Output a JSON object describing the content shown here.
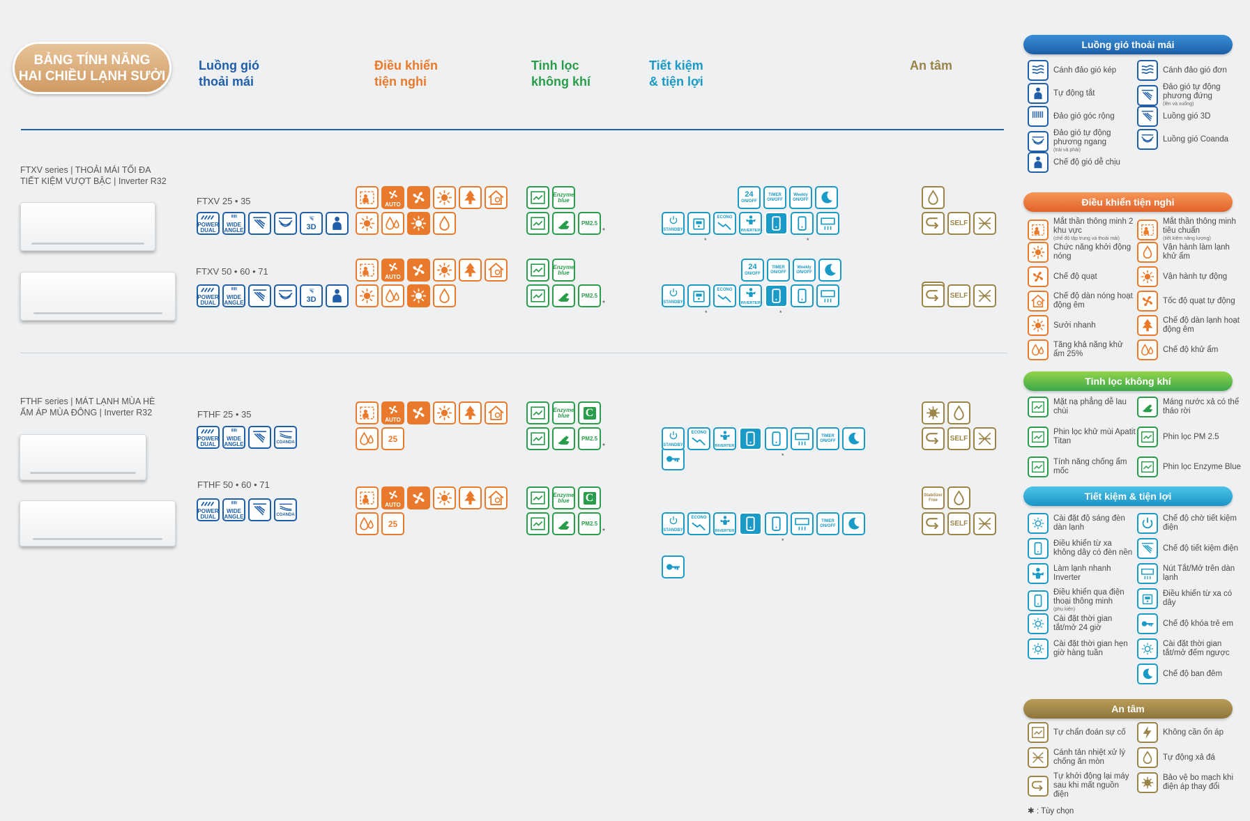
{
  "title": {
    "line1": "BẢNG TÍNH NĂNG",
    "line2": "HAI CHIỀU LẠNH SƯỞI"
  },
  "columns": [
    {
      "line1": "Luồng gió",
      "line2": "thoải mái",
      "color": "#1f5fa9"
    },
    {
      "line1": "Điều khiển",
      "line2": "tiện nghi",
      "color": "#ea7a2b"
    },
    {
      "line1": "Tinh lọc",
      "line2": "không khí",
      "color": "#2a9d4b"
    },
    {
      "line1": "Tiết kiệm",
      "line2": "& tiện lợi",
      "color": "#1a9ac6"
    },
    {
      "line1": "An tâm",
      "line2": "",
      "color": "#9b8447"
    }
  ],
  "series": [
    {
      "line1": "FTXV series | THOẢI MÁI TỐI ĐA",
      "line2": "TIẾT KIỆM VƯỢT BẬC | Inverter R32",
      "models": [
        "FTXV 25 • 35",
        "FTXV 50 • 60 • 71"
      ]
    },
    {
      "line1": "FTHF series | MÁT LẠNH MÙA HÈ",
      "line2": "ẤM ÁP MÙA ĐÔNG | Inverter R32",
      "models": [
        "FTHF 25 • 35",
        "FTHF 50 • 60 • 71"
      ]
    }
  ],
  "icon_text": {
    "power": "POWER",
    "dual": "DUAL",
    "wide": "WIDE",
    "angle": "ANGLE",
    "d3": "3D",
    "coanda": "COANDA",
    "auto": "AUTO",
    "pct25": "25",
    "enzyme": "Enzyme",
    "blue": "blue",
    "pm": "PM2.5",
    "standby": "STANDBY",
    "econo": "ECONO",
    "inverter": "INVERTER",
    "h24": "24",
    "onoff": "ON/OFF",
    "timer": "TIMER",
    "weekly": "Weekly",
    "self": "SELF",
    "stabilizer": "Stabilizer",
    "free": "Free",
    "star": "*"
  },
  "legend": {
    "comfort": {
      "title": "Luồng gió thoải mái",
      "items": [
        {
          "icon": "power-dual-icon",
          "text": "Cánh đảo gió kép",
          "note": ""
        },
        {
          "icon": "power-icon",
          "text": "Cánh đảo gió đơn",
          "note": ""
        },
        {
          "icon": "auto-close-icon",
          "text": "Tự động tắt",
          "note": ""
        },
        {
          "icon": "vertical-swing-icon",
          "text": "Đảo gió tự động phương đứng",
          "note": "(lên và xuống)"
        },
        {
          "icon": "wide-angle-icon",
          "text": "Đảo gió góc rộng",
          "note": ""
        },
        {
          "icon": "3d-airflow-icon",
          "text": "Luồng gió 3D",
          "note": ""
        },
        {
          "icon": "horizontal-swing-icon",
          "text": "Đảo gió tự động phương ngang",
          "note": "(trái và phải)"
        },
        {
          "icon": "coanda-icon",
          "text": "Luồng gió Coanda",
          "note": ""
        },
        {
          "icon": "comfort-mode-icon",
          "text": "Chế độ gió dễ chịu",
          "note": ""
        }
      ]
    },
    "control": {
      "title": "Điều khiển tiện nghi",
      "items": [
        {
          "icon": "two-zone-eye-icon",
          "text": "Mắt thần thông minh 2 khu vực",
          "note": "(chế độ tập trung và thoải mái)"
        },
        {
          "icon": "smart-eye-icon",
          "text": "Mắt thần thông minh tiêu chuẩn",
          "note": "(tiết kiệm năng lượng)"
        },
        {
          "icon": "warm-start-icon",
          "text": "Chức năng khởi động nóng",
          "note": ""
        },
        {
          "icon": "cool-dry-icon",
          "text": "Vận hành làm lạnh khử ẩm",
          "note": ""
        },
        {
          "icon": "fan-mode-icon",
          "text": "Chế độ quạt",
          "note": ""
        },
        {
          "icon": "auto-mode-icon",
          "text": "Vận hành tự động",
          "note": ""
        },
        {
          "icon": "quiet-indoor-heat-icon",
          "text": "Chế độ dàn nóng hoạt động êm",
          "note": ""
        },
        {
          "icon": "auto-fan-icon",
          "text": "Tốc độ quạt tự động",
          "note": ""
        },
        {
          "icon": "quick-heat-icon",
          "text": "Sưởi nhanh",
          "note": ""
        },
        {
          "icon": "quiet-unit-icon",
          "text": "Chế độ dàn lạnh hoạt động êm",
          "note": ""
        },
        {
          "icon": "dehumid-25-icon",
          "text": "Tăng khả năng khử ẩm 25%",
          "note": ""
        },
        {
          "icon": "dry-mode-icon",
          "text": "Chế độ khử ẩm",
          "note": ""
        }
      ]
    },
    "purify": {
      "title": "Tinh lọc không khí",
      "items": [
        {
          "icon": "easy-clean-panel-icon",
          "text": "Mặt nạ phẳng dễ lau chùi",
          "note": ""
        },
        {
          "icon": "drain-pan-icon",
          "text": "Máng nước xả có thể tháo rời",
          "note": ""
        },
        {
          "icon": "titan-filter-icon",
          "text": "Phin lọc khử mùi Apatit Titan",
          "note": ""
        },
        {
          "icon": "pm25-filter-icon",
          "text": "Phin lọc PM 2.5",
          "note": ""
        },
        {
          "icon": "mold-proof-icon",
          "text": "Tính năng chống ẩm mốc",
          "note": ""
        },
        {
          "icon": "enzyme-blue-icon",
          "text": "Phin lọc Enzyme Blue",
          "note": ""
        }
      ]
    },
    "saving": {
      "title": "Tiết kiệm & tiện lợi",
      "items": [
        {
          "icon": "brightness-icon",
          "text": "Cài đặt độ sáng đèn dàn lạnh",
          "note": ""
        },
        {
          "icon": "standby-icon",
          "text": "Chế độ chờ tiết kiệm điện",
          "note": ""
        },
        {
          "icon": "wireless-remote-icon",
          "text": "Điều khiển từ xa không dây có đèn nền",
          "note": ""
        },
        {
          "icon": "econo-icon",
          "text": "Chế độ tiết kiệm điện",
          "note": ""
        },
        {
          "icon": "inverter-powerful-icon",
          "text": "Làm lạnh nhanh Inverter",
          "note": ""
        },
        {
          "icon": "onoff-button-icon",
          "text": "Nút Tắt/Mở trên dàn lạnh",
          "note": ""
        },
        {
          "icon": "smartphone-icon",
          "text": "Điều khiển qua điện thoại thông minh",
          "note": "(phụ kiện)"
        },
        {
          "icon": "wired-remote-icon",
          "text": "Điều khiển từ xa có dây",
          "note": ""
        },
        {
          "icon": "timer-24h-icon",
          "text": "Cài đặt thời gian tắt/mở 24 giờ",
          "note": ""
        },
        {
          "icon": "child-lock-icon",
          "text": "Chế độ khóa trẻ em",
          "note": ""
        },
        {
          "icon": "weekly-timer-icon",
          "text": "Cài đặt thời gian hẹn giờ hàng tuần",
          "note": ""
        },
        {
          "icon": "countdown-timer-icon",
          "text": "Cài đặt thời gian tắt/mở đếm ngược",
          "note": ""
        },
        {
          "icon": "",
          "text": "",
          "note": ""
        },
        {
          "icon": "night-mode-icon",
          "text": "Chế độ ban đêm",
          "note": ""
        }
      ]
    },
    "care": {
      "title": "An tâm",
      "items": [
        {
          "icon": "self-diagnosis-icon",
          "text": "Tự chẩn đoán sự cố",
          "note": ""
        },
        {
          "icon": "stabilizer-free-icon",
          "text": "Không cần ổn áp",
          "note": ""
        },
        {
          "icon": "anti-corrosion-fin-icon",
          "text": "Cánh tản nhiệt xử lý chống ăn mòn",
          "note": ""
        },
        {
          "icon": "auto-drain-icon",
          "text": "Tự động xả đá",
          "note": ""
        },
        {
          "icon": "auto-restart-icon",
          "text": "Tự khởi động lại máy sau khi mất nguồn điện",
          "note": ""
        },
        {
          "icon": "pcb-protect-icon",
          "text": "Bảo vệ bo mạch khi điện áp thay đổi",
          "note": ""
        }
      ]
    }
  },
  "footnote": "✱ : Tùy chọn"
}
